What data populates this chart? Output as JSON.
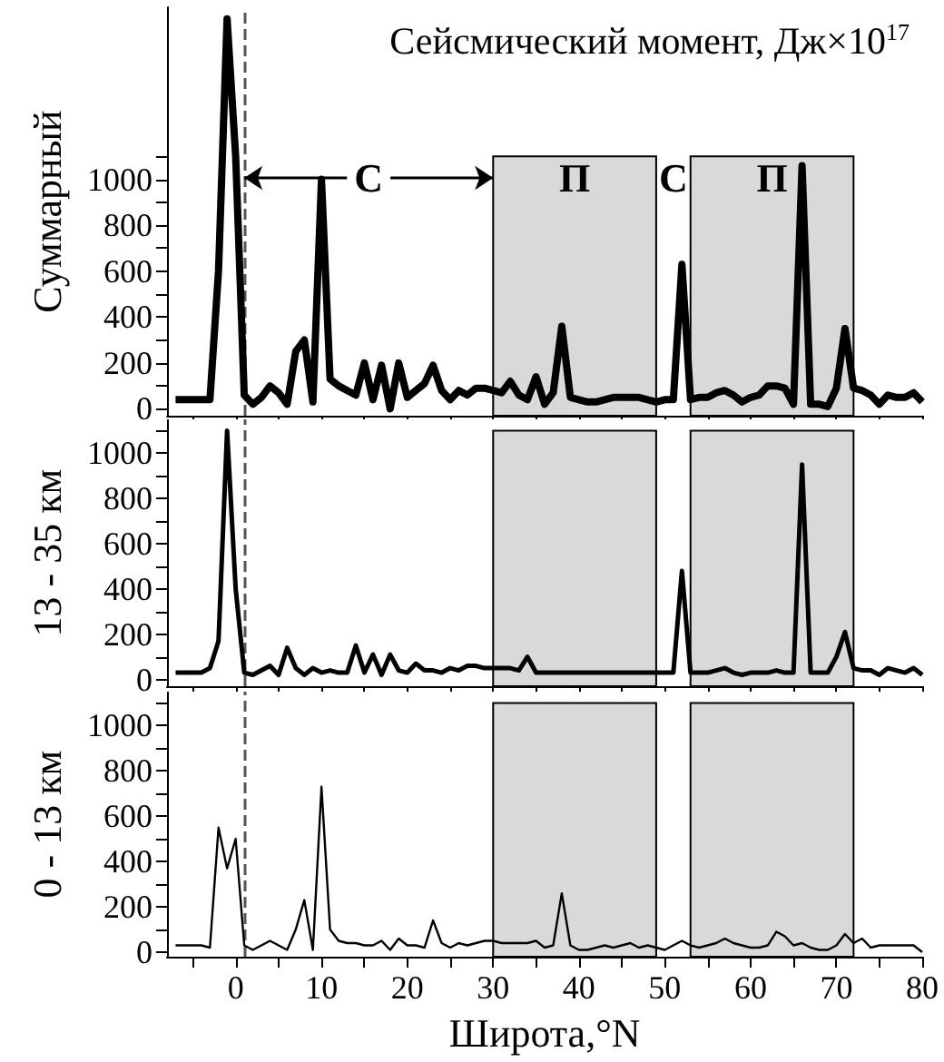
{
  "chart_data": [
    {
      "type": "line",
      "title": "Сейсмический момент, Дж×10$^{17}$",
      "ylabel": "Суммарный",
      "tick_labels": "y",
      "color": "#000000",
      "grid": false,
      "x": [
        -7,
        -6,
        -5,
        -4,
        -3,
        -2,
        -1,
        0,
        1,
        2,
        3,
        4,
        5,
        6,
        7,
        8,
        9,
        10,
        11,
        12,
        13,
        14,
        15,
        16,
        17,
        18,
        19,
        20,
        21,
        22,
        23,
        24,
        25,
        26,
        27,
        28,
        29,
        30,
        31,
        32,
        33,
        34,
        35,
        36,
        37,
        38,
        39,
        40,
        41,
        42,
        43,
        44,
        45,
        46,
        47,
        48,
        49,
        50,
        51,
        52,
        53,
        54,
        55,
        56,
        57,
        58,
        59,
        60,
        61,
        62,
        63,
        64,
        65,
        66,
        67,
        68,
        69,
        70,
        71,
        72,
        73,
        74,
        75,
        76,
        77,
        78,
        79,
        80
      ],
      "values": [
        40,
        40,
        40,
        40,
        40,
        600,
        1700,
        1100,
        60,
        20,
        50,
        100,
        70,
        20,
        250,
        300,
        30,
        1000,
        130,
        100,
        80,
        60,
        200,
        40,
        190,
        0,
        200,
        50,
        80,
        110,
        190,
        80,
        40,
        80,
        60,
        90,
        90,
        80,
        70,
        120,
        60,
        40,
        140,
        20,
        70,
        360,
        50,
        40,
        30,
        30,
        40,
        50,
        50,
        50,
        50,
        40,
        30,
        40,
        40,
        630,
        40,
        50,
        50,
        70,
        80,
        60,
        30,
        50,
        60,
        100,
        100,
        90,
        20,
        1060,
        20,
        20,
        10,
        90,
        350,
        90,
        80,
        60,
        20,
        60,
        50,
        50,
        70,
        30
      ],
      "xlim": [
        -8,
        80
      ],
      "xticks": [
        {
          "value": -5,
          "label": null
        },
        0,
        {
          "value": 5,
          "label": null
        },
        10,
        {
          "value": 15,
          "label": null
        },
        20,
        {
          "value": 25,
          "label": null
        },
        30,
        {
          "value": 35,
          "label": null
        },
        40,
        {
          "value": 45,
          "label": null
        },
        50,
        {
          "value": 55,
          "label": null
        },
        60,
        {
          "value": 65,
          "label": null
        },
        70,
        {
          "value": 75,
          "label": null
        },
        80
      ],
      "ylim": [
        -30,
        1750
      ],
      "yticks": [
        0,
        {
          "value": 100,
          "label": null
        },
        200,
        {
          "value": 300,
          "label": null
        },
        400,
        {
          "value": 500,
          "label": null
        },
        600,
        {
          "value": 700,
          "label": null
        },
        800,
        {
          "value": 900,
          "label": null
        },
        1000,
        {
          "value": 1100,
          "label": null
        }
      ],
      "bands": [
        {
          "axis": "x",
          "from": 30,
          "to": 49,
          "color": "#d9d9d9"
        },
        {
          "axis": "x",
          "from": 53,
          "to": 72,
          "color": "#d9d9d9"
        }
      ],
      "ref_lines": [
        {
          "axis": "x",
          "value": 1,
          "color": "#555555",
          "line_style": "dashed"
        }
      ],
      "annotations": [
        "С",
        "П",
        "С",
        "П"
      ]
    },
    {
      "type": "line",
      "ylabel": "13 - 35 км",
      "tick_labels": "y",
      "color": "#000000",
      "grid": false,
      "x": [
        -7,
        -6,
        -5,
        -4,
        -3,
        -2,
        -1,
        0,
        1,
        2,
        3,
        4,
        5,
        6,
        7,
        8,
        9,
        10,
        11,
        12,
        13,
        14,
        15,
        16,
        17,
        18,
        19,
        20,
        21,
        22,
        23,
        24,
        25,
        26,
        27,
        28,
        29,
        30,
        31,
        32,
        33,
        34,
        35,
        36,
        37,
        38,
        39,
        40,
        41,
        42,
        43,
        44,
        45,
        46,
        47,
        48,
        49,
        50,
        51,
        52,
        53,
        54,
        55,
        56,
        57,
        58,
        59,
        60,
        61,
        62,
        63,
        64,
        65,
        66,
        67,
        68,
        69,
        70,
        71,
        72,
        73,
        74,
        75,
        76,
        77,
        78,
        79,
        80
      ],
      "values": [
        30,
        30,
        30,
        30,
        50,
        170,
        1100,
        400,
        30,
        20,
        40,
        60,
        20,
        140,
        50,
        20,
        50,
        30,
        40,
        30,
        30,
        150,
        30,
        110,
        20,
        110,
        40,
        30,
        70,
        40,
        40,
        30,
        50,
        40,
        60,
        60,
        50,
        50,
        50,
        50,
        40,
        100,
        30,
        30,
        30,
        30,
        30,
        30,
        30,
        30,
        30,
        30,
        30,
        30,
        30,
        30,
        30,
        30,
        30,
        480,
        30,
        30,
        30,
        40,
        50,
        30,
        20,
        30,
        30,
        30,
        40,
        30,
        30,
        950,
        30,
        30,
        30,
        100,
        210,
        50,
        40,
        40,
        20,
        50,
        40,
        30,
        50,
        20
      ],
      "xlim": [
        -8,
        80
      ],
      "xticks": [
        {
          "value": -5,
          "label": null
        },
        0,
        {
          "value": 5,
          "label": null
        },
        10,
        {
          "value": 15,
          "label": null
        },
        20,
        {
          "value": 25,
          "label": null
        },
        30,
        {
          "value": 35,
          "label": null
        },
        40,
        {
          "value": 45,
          "label": null
        },
        50,
        {
          "value": 55,
          "label": null
        },
        60,
        {
          "value": 65,
          "label": null
        },
        70,
        {
          "value": 75,
          "label": null
        },
        80
      ],
      "ylim": [
        -30,
        1150
      ],
      "yticks": [
        0,
        {
          "value": 100,
          "label": null
        },
        200,
        {
          "value": 300,
          "label": null
        },
        400,
        {
          "value": 500,
          "label": null
        },
        600,
        {
          "value": 700,
          "label": null
        },
        800,
        {
          "value": 900,
          "label": null
        },
        1000,
        {
          "value": 1100,
          "label": null
        }
      ],
      "bands": [
        {
          "axis": "x",
          "from": 30,
          "to": 49,
          "color": "#d9d9d9"
        },
        {
          "axis": "x",
          "from": 53,
          "to": 72,
          "color": "#d9d9d9"
        }
      ],
      "ref_lines": [
        {
          "axis": "x",
          "value": 1,
          "color": "#555555",
          "line_style": "dashed"
        }
      ]
    },
    {
      "type": "line",
      "ylabel": "0 - 13 км",
      "xlabel": "Широта,°N",
      "color": "#000000",
      "grid": false,
      "x": [
        -7,
        -6,
        -5,
        -4,
        -3,
        -2,
        -1,
        0,
        1,
        2,
        3,
        4,
        5,
        6,
        7,
        8,
        9,
        10,
        11,
        12,
        13,
        14,
        15,
        16,
        17,
        18,
        19,
        20,
        21,
        22,
        23,
        24,
        25,
        26,
        27,
        28,
        29,
        30,
        31,
        32,
        33,
        34,
        35,
        36,
        37,
        38,
        39,
        40,
        41,
        42,
        43,
        44,
        45,
        46,
        47,
        48,
        49,
        50,
        51,
        52,
        53,
        54,
        55,
        56,
        57,
        58,
        59,
        60,
        61,
        62,
        63,
        64,
        65,
        66,
        67,
        68,
        69,
        70,
        71,
        72,
        73,
        74,
        75,
        76,
        77,
        78,
        79,
        80
      ],
      "values": [
        30,
        30,
        30,
        30,
        20,
        550,
        370,
        500,
        30,
        10,
        30,
        50,
        30,
        10,
        100,
        230,
        10,
        730,
        100,
        50,
        40,
        40,
        30,
        30,
        50,
        10,
        60,
        30,
        30,
        20,
        140,
        40,
        20,
        40,
        30,
        40,
        50,
        50,
        40,
        40,
        40,
        40,
        50,
        20,
        30,
        260,
        30,
        10,
        10,
        20,
        30,
        20,
        30,
        40,
        20,
        30,
        20,
        10,
        30,
        50,
        30,
        20,
        30,
        40,
        60,
        40,
        30,
        20,
        20,
        30,
        90,
        70,
        30,
        40,
        20,
        10,
        10,
        30,
        80,
        40,
        60,
        20,
        30,
        30,
        30,
        30,
        30,
        0
      ],
      "xlim": [
        -8,
        80
      ],
      "xticks": [
        {
          "value": -5,
          "label": null
        },
        0,
        {
          "value": 5,
          "label": null
        },
        10,
        {
          "value": 15,
          "label": null
        },
        20,
        {
          "value": 25,
          "label": null
        },
        30,
        {
          "value": 35,
          "label": null
        },
        40,
        {
          "value": 45,
          "label": null
        },
        50,
        {
          "value": 55,
          "label": null
        },
        60,
        {
          "value": 65,
          "label": null
        },
        70,
        {
          "value": 75,
          "label": null
        },
        80
      ],
      "ylim": [
        -20,
        1150
      ],
      "yticks": [
        0,
        {
          "value": 100,
          "label": null
        },
        200,
        {
          "value": 300,
          "label": null
        },
        400,
        {
          "value": 500,
          "label": null
        },
        600,
        {
          "value": 700,
          "label": null
        },
        800,
        {
          "value": 900,
          "label": null
        },
        1000,
        {
          "value": 1100,
          "label": null
        }
      ],
      "bands": [
        {
          "axis": "x",
          "from": 30,
          "to": 49,
          "color": "#d9d9d9"
        },
        {
          "axis": "x",
          "from": 53,
          "to": 72,
          "color": "#d9d9d9"
        }
      ],
      "ref_lines": [
        {
          "axis": "x",
          "value": 1,
          "color": "#555555",
          "line_style": "dashed"
        }
      ]
    }
  ]
}
